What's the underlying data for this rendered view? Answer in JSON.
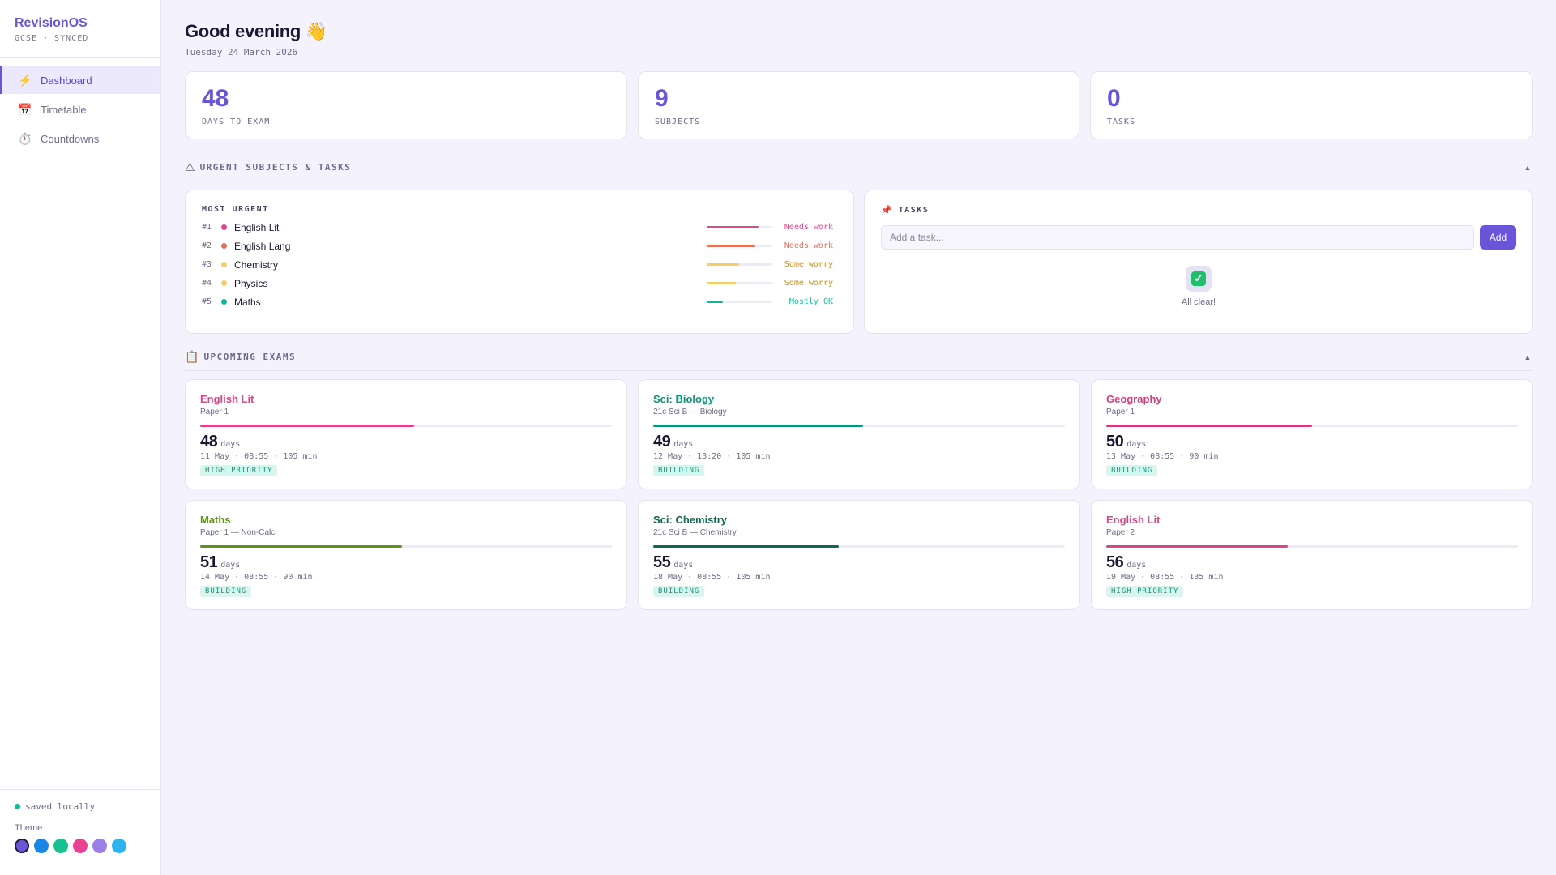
{
  "brand": {
    "name": "RevisionOS",
    "subtitle": "GCSE · SYNCED"
  },
  "nav": [
    {
      "label": "Dashboard",
      "icon": "lightning-icon",
      "glyph": "⚡",
      "active": true
    },
    {
      "label": "Timetable",
      "icon": "calendar-icon",
      "glyph": "📅",
      "active": false
    },
    {
      "label": "Countdowns",
      "icon": "stopwatch-icon",
      "glyph": "⏱️",
      "active": false
    }
  ],
  "footer": {
    "saved": "saved locally",
    "theme_label": "Theme",
    "swatches": [
      "#6a55d8",
      "#1a86e3",
      "#16c08f",
      "#e84393",
      "#9b7fe6",
      "#2fb3ee"
    ],
    "selected_swatch": 0
  },
  "greeting": {
    "title": "Good evening 👋",
    "date": "Tuesday 24 March 2026"
  },
  "stats": [
    {
      "value": "48",
      "label": "DAYS TO EXAM"
    },
    {
      "value": "9",
      "label": "SUBJECTS"
    },
    {
      "value": "0",
      "label": "TASKS"
    }
  ],
  "urgent_section": {
    "icon": "warning-icon",
    "glyph": "⚠",
    "title": "URGENT SUBJECTS & TASKS",
    "toggle": "▲"
  },
  "most_urgent": {
    "title": "MOST URGENT",
    "items": [
      {
        "rank": "#1",
        "name": "English Lit",
        "status": "Needs work",
        "level": 0.8,
        "color": "#e0468d",
        "status_color": "#e0468d"
      },
      {
        "rank": "#2",
        "name": "English Lang",
        "status": "Needs work",
        "level": 0.75,
        "color": "#e0725a",
        "status_color": "#e0725a"
      },
      {
        "rank": "#3",
        "name": "Chemistry",
        "status": "Some worry",
        "level": 0.5,
        "color": "#f6cd6c",
        "status_color": "#c8901c"
      },
      {
        "rank": "#4",
        "name": "Physics",
        "status": "Some worry",
        "level": 0.45,
        "color": "#f6cd6c",
        "status_color": "#c8901c"
      },
      {
        "rank": "#5",
        "name": "Maths",
        "status": "Mostly OK",
        "level": 0.25,
        "color": "#13b69a",
        "status_color": "#13b69a"
      }
    ]
  },
  "tasks": {
    "icon": "pushpin-icon",
    "glyph": "📌",
    "title": "TASKS",
    "placeholder": "Add a task...",
    "add_label": "Add",
    "empty_text": "All clear!"
  },
  "exams_section": {
    "icon": "clipboard-icon",
    "glyph": "📋",
    "title": "UPCOMING EXAMS",
    "toggle": "▲"
  },
  "exams": [
    {
      "subject": "English Lit",
      "paper": "Paper 1",
      "days": "48",
      "unit": "days",
      "meta": "11 May · 08:55 · 105 min",
      "badge": "HIGH PRIORITY",
      "color": "#d94588",
      "progress": 0.52
    },
    {
      "subject": "Sci: Biology",
      "paper": "21c Sci B — Biology",
      "days": "49",
      "unit": "days",
      "meta": "12 May · 13:20 · 105 min",
      "badge": "BUILDING",
      "color": "#11927a",
      "progress": 0.51
    },
    {
      "subject": "Geography",
      "paper": "Paper 1",
      "days": "50",
      "unit": "days",
      "meta": "13 May · 08:55 · 90 min",
      "badge": "BUILDING",
      "color": "#cd3e7f",
      "progress": 0.5
    },
    {
      "subject": "Maths",
      "paper": "Paper 1 — Non-Calc",
      "days": "51",
      "unit": "days",
      "meta": "14 May · 08:55 · 90 min",
      "badge": "BUILDING",
      "color": "#5f9312",
      "progress": 0.49
    },
    {
      "subject": "Sci: Chemistry",
      "paper": "21c Sci B — Chemistry",
      "days": "55",
      "unit": "days",
      "meta": "18 May · 08:55 · 105 min",
      "badge": "BUILDING",
      "color": "#0c6a52",
      "progress": 0.45
    },
    {
      "subject": "English Lit",
      "paper": "Paper 2",
      "days": "56",
      "unit": "days",
      "meta": "19 May · 08:55 · 135 min",
      "badge": "HIGH PRIORITY",
      "color": "#d94588",
      "progress": 0.44
    }
  ]
}
